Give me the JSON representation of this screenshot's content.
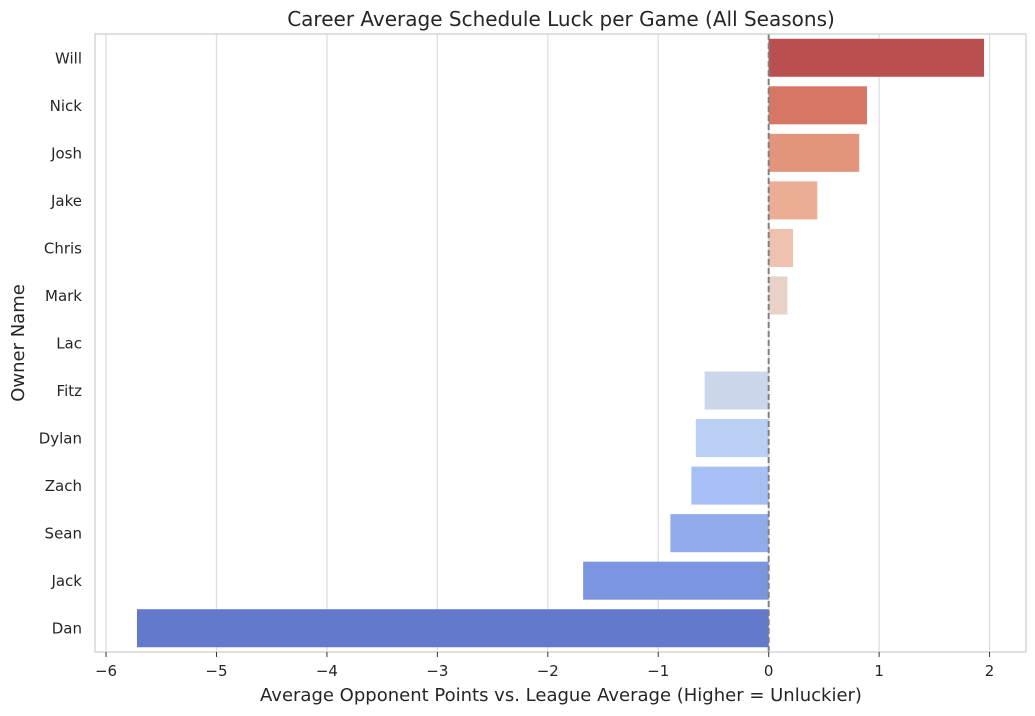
{
  "chart_data": {
    "type": "bar",
    "orientation": "horizontal",
    "title": "Career Average Schedule Luck per Game (All Seasons)",
    "xlabel": "Average Opponent Points vs. League Average (Higher = Unluckier)",
    "ylabel": "Owner Name",
    "categories": [
      "Will",
      "Nick",
      "Josh",
      "Jake",
      "Chris",
      "Mark",
      "Lac",
      "Fitz",
      "Dylan",
      "Zach",
      "Sean",
      "Jack",
      "Dan"
    ],
    "values": [
      1.95,
      0.89,
      0.82,
      0.44,
      0.22,
      0.17,
      0.0,
      -0.58,
      -0.66,
      -0.7,
      -0.89,
      -1.68,
      -5.72
    ],
    "colors": [
      "#b9504f",
      "#d57764",
      "#e3957b",
      "#ebae94",
      "#eec2ae",
      "#e8d1c6",
      "#dddcdc",
      "#cbd6ea",
      "#b9cff3",
      "#a6c0f5",
      "#91abec",
      "#7b95e0",
      "#6379cc"
    ],
    "x_ticks": [
      -6,
      -5,
      -4,
      -3,
      -2,
      -1,
      0,
      1,
      2
    ],
    "x_tick_labels": [
      "−6",
      "−5",
      "−4",
      "−3",
      "−2",
      "−1",
      "0",
      "1",
      "2"
    ],
    "xlim": [
      -6.1,
      2.33
    ],
    "reference_line": {
      "x": 0,
      "style": "dashed",
      "color": "#808080"
    },
    "grid": "vertical",
    "legend": "none"
  }
}
